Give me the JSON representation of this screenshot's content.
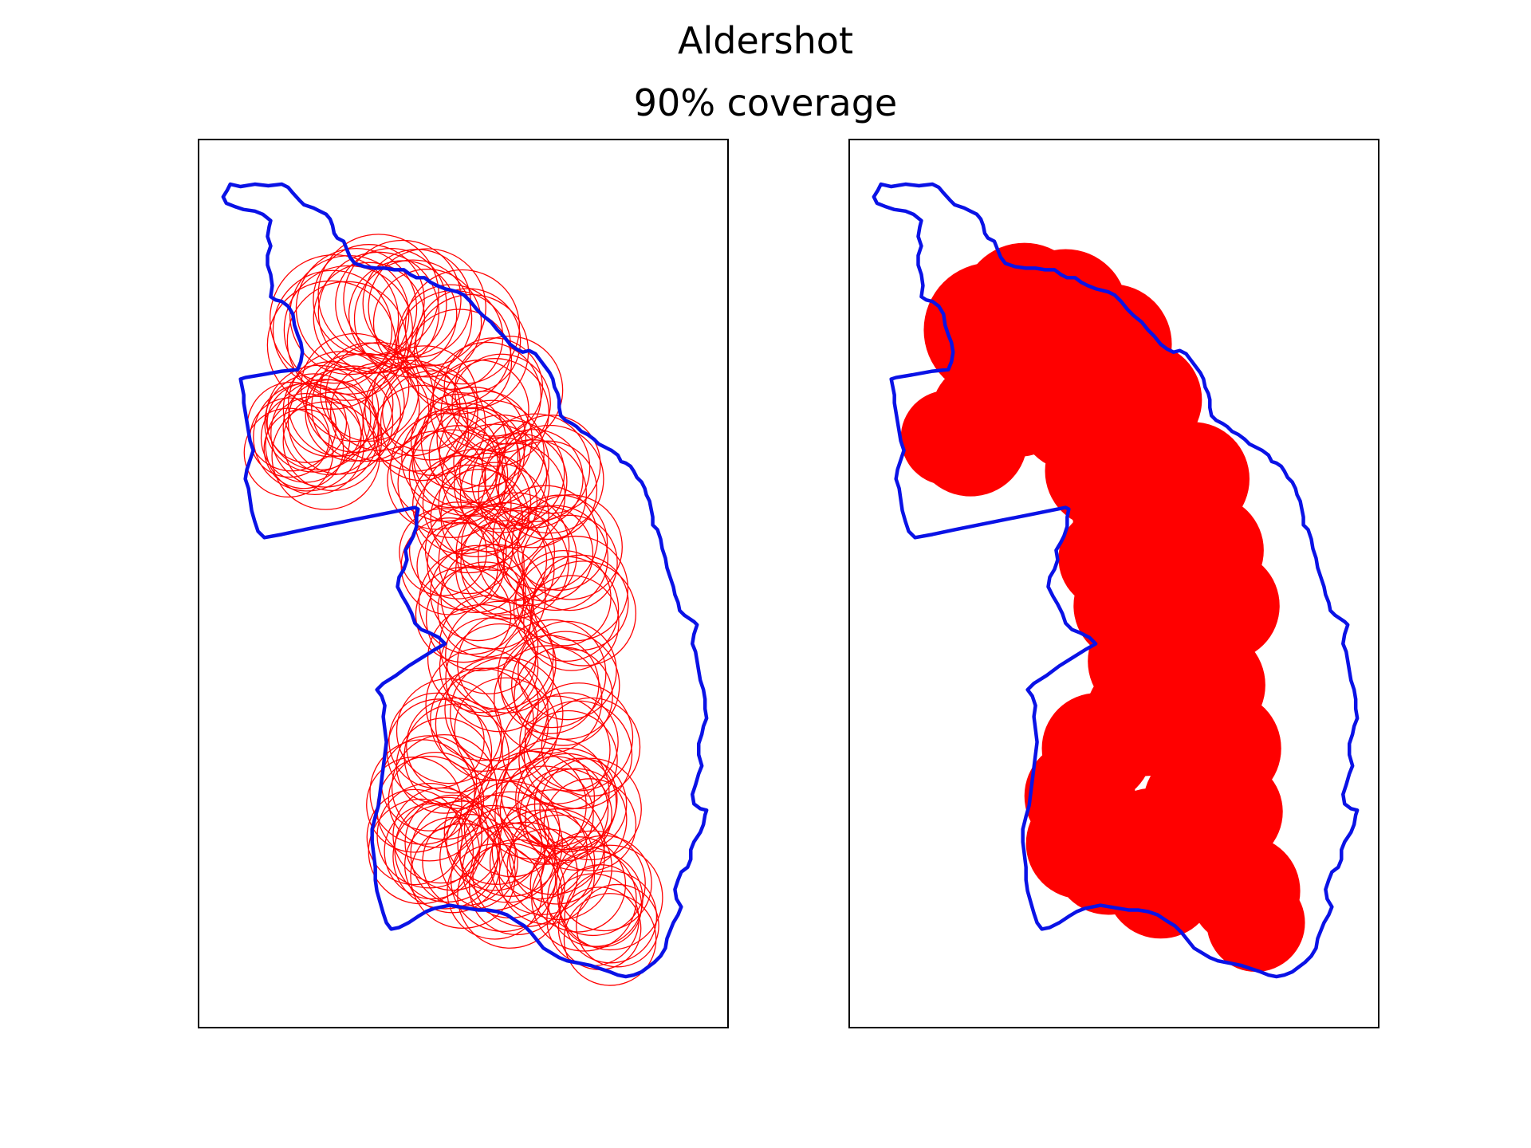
{
  "figure": {
    "title": "Aldershot",
    "subtitle": "90% coverage"
  },
  "colors": {
    "boundary": "#0a12e6",
    "coverage": "#ff0000",
    "frame": "#000000",
    "background": "#ffffff"
  },
  "panels": [
    {
      "name": "circle-outlines-panel",
      "rendering": "outline"
    },
    {
      "name": "filled-coverage-panel",
      "rendering": "filled"
    }
  ]
}
